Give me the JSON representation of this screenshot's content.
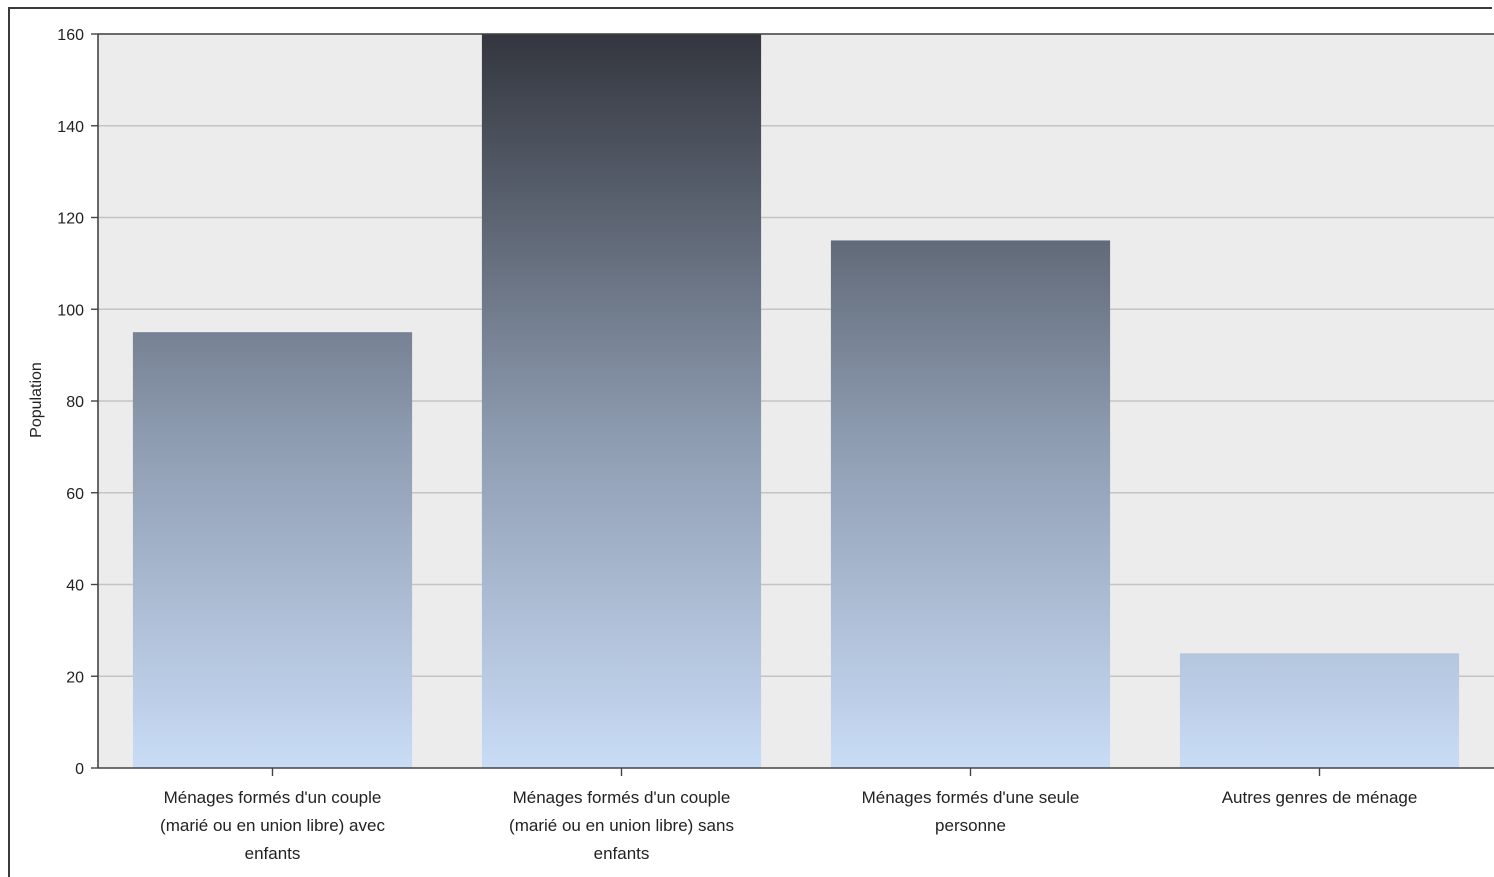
{
  "chart_data": {
    "type": "bar",
    "title": "",
    "xlabel": "",
    "ylabel": "Population",
    "ylim": [
      0,
      160
    ],
    "yticks": [
      0,
      20,
      40,
      60,
      80,
      100,
      120,
      140,
      160
    ],
    "grid": true,
    "legend": "none",
    "categories": [
      [
        "Ménages formés d'un couple",
        "(marié ou en union libre) avec",
        "enfants"
      ],
      [
        "Ménages formés d'un couple",
        "(marié ou en union libre) sans",
        "enfants"
      ],
      [
        "Ménages formés d'une seule",
        "personne"
      ],
      [
        "Autres genres de ménage"
      ]
    ],
    "values": [
      95,
      160,
      115,
      25
    ]
  },
  "colors": {
    "plot_background": "#ececec",
    "bar_top": "#33363e",
    "bar_bottom": "#c9dcf6",
    "grid": "#c4c4c4",
    "axis": "#444444"
  }
}
